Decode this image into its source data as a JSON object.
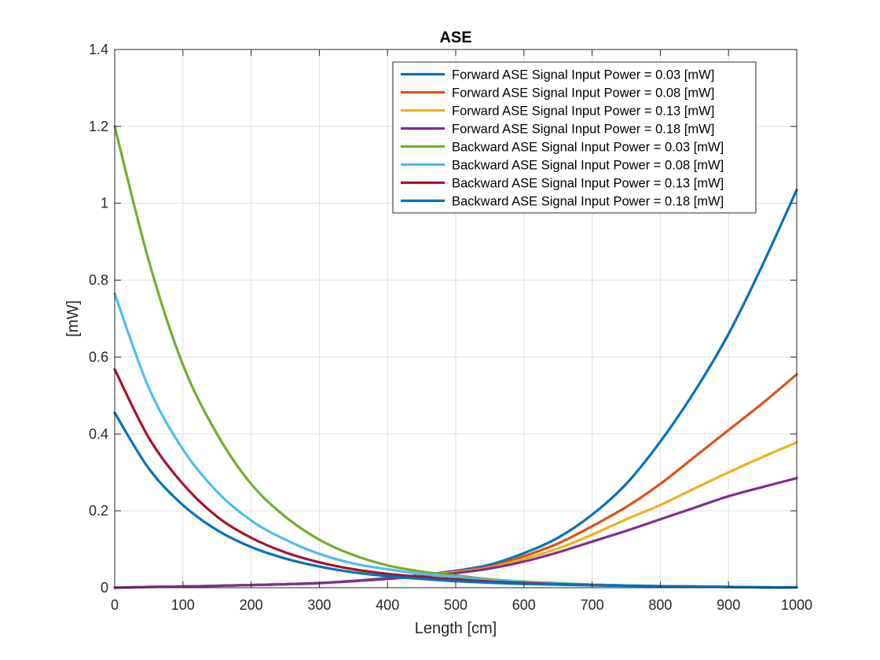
{
  "chart_data": {
    "type": "line",
    "title": "ASE",
    "xlabel": "Length [cm]",
    "ylabel": "[mW]",
    "xlim": [
      0,
      1000
    ],
    "ylim": [
      0,
      1.4
    ],
    "xticks": [
      0,
      100,
      200,
      300,
      400,
      500,
      600,
      700,
      800,
      900,
      1000
    ],
    "xtick_labels": [
      "0",
      "100",
      "200",
      "300",
      "400",
      "500",
      "600",
      "700",
      "800",
      "900",
      "1000"
    ],
    "yticks": [
      0,
      0.2,
      0.4,
      0.6,
      0.8,
      1.0,
      1.2,
      1.4
    ],
    "ytick_labels": [
      "0",
      "0.2",
      "0.4",
      "0.6",
      "0.8",
      "1",
      "1.2",
      "1.4"
    ],
    "grid": true,
    "legend_position": "top-right",
    "x": [
      0,
      50,
      100,
      150,
      200,
      250,
      300,
      350,
      400,
      450,
      500,
      550,
      600,
      650,
      700,
      750,
      800,
      850,
      900,
      950,
      1000
    ],
    "series": [
      {
        "name": "Forward ASE Signal Input Power = 0.03 [mW]",
        "color": "#0072BD",
        "values": [
          0.0,
          0.002,
          0.003,
          0.005,
          0.007,
          0.009,
          0.012,
          0.018,
          0.025,
          0.033,
          0.044,
          0.06,
          0.09,
          0.13,
          0.19,
          0.27,
          0.38,
          0.51,
          0.66,
          0.84,
          1.035
        ]
      },
      {
        "name": "Forward ASE Signal Input Power = 0.08 [mW]",
        "color": "#D95319",
        "values": [
          0.0,
          0.002,
          0.003,
          0.005,
          0.007,
          0.009,
          0.012,
          0.017,
          0.024,
          0.032,
          0.042,
          0.055,
          0.082,
          0.115,
          0.16,
          0.21,
          0.27,
          0.34,
          0.41,
          0.48,
          0.555
        ]
      },
      {
        "name": "Forward ASE Signal Input Power = 0.13 [mW]",
        "color": "#EDB120",
        "values": [
          0.0,
          0.002,
          0.003,
          0.005,
          0.007,
          0.009,
          0.012,
          0.017,
          0.023,
          0.031,
          0.04,
          0.052,
          0.075,
          0.102,
          0.138,
          0.178,
          0.215,
          0.258,
          0.3,
          0.34,
          0.378
        ]
      },
      {
        "name": "Forward ASE Signal Input Power = 0.18 [mW]",
        "color": "#7E2F8E",
        "values": [
          0.0,
          0.002,
          0.003,
          0.005,
          0.007,
          0.009,
          0.012,
          0.017,
          0.023,
          0.03,
          0.038,
          0.05,
          0.068,
          0.092,
          0.12,
          0.148,
          0.178,
          0.208,
          0.238,
          0.262,
          0.285
        ]
      },
      {
        "name": "Backward ASE Signal Input Power = 0.03 [mW]",
        "color": "#77AC30",
        "values": [
          1.2,
          0.85,
          0.58,
          0.4,
          0.27,
          0.185,
          0.125,
          0.085,
          0.058,
          0.042,
          0.032,
          0.022,
          0.016,
          0.012,
          0.008,
          0.006,
          0.004,
          0.003,
          0.002,
          0.001,
          0.001
        ]
      },
      {
        "name": "Backward ASE Signal Input Power = 0.08 [mW]",
        "color": "#4DBEEE",
        "values": [
          0.765,
          0.52,
          0.36,
          0.25,
          0.175,
          0.125,
          0.088,
          0.063,
          0.048,
          0.036,
          0.028,
          0.02,
          0.015,
          0.011,
          0.008,
          0.006,
          0.004,
          0.003,
          0.002,
          0.001,
          0.001
        ]
      },
      {
        "name": "Backward ASE Signal Input Power = 0.13 [mW]",
        "color": "#A2142F",
        "values": [
          0.568,
          0.39,
          0.27,
          0.185,
          0.13,
          0.092,
          0.066,
          0.048,
          0.036,
          0.028,
          0.022,
          0.016,
          0.012,
          0.009,
          0.007,
          0.005,
          0.004,
          0.003,
          0.002,
          0.001,
          0.001
        ]
      },
      {
        "name": "Backward ASE Signal Input Power = 0.18 [mW]",
        "color": "#0072BD",
        "values": [
          0.455,
          0.31,
          0.215,
          0.15,
          0.106,
          0.076,
          0.055,
          0.04,
          0.03,
          0.023,
          0.017,
          0.013,
          0.01,
          0.008,
          0.006,
          0.005,
          0.004,
          0.003,
          0.002,
          0.001,
          0.001
        ]
      }
    ]
  }
}
